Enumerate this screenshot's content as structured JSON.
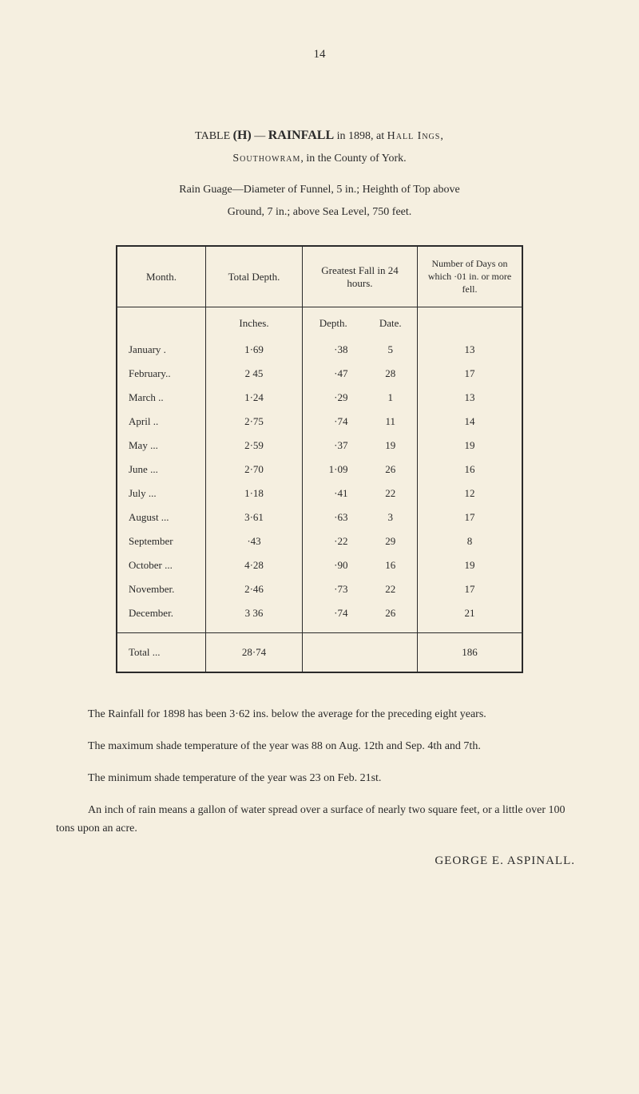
{
  "page_number": "14",
  "heading": {
    "line1_prefix": "TABLE ",
    "line1_bold_H": "(H)",
    "line1_dash": " — ",
    "line1_bold_rainfall": "RAINFALL",
    "line1_suffix": " in 1898, at ",
    "line1_smallcaps": "Hall Ings,",
    "line2_smallcaps": "Southowram",
    "line2_suffix": ", in the County of York."
  },
  "guage": {
    "line1": "Rain Guage—Diameter of Funnel, 5 in.; Heighth of Top above",
    "line2": "Ground, 7 in.; above Sea Level, 750 feet."
  },
  "table": {
    "headers": {
      "month": "Month.",
      "total_depth": "Total Depth.",
      "greatest_fall": "Greatest Fall in 24 hours.",
      "number_days": "Number of Days on which ·01 in. or more fell."
    },
    "subheaders": {
      "inches": "Inches.",
      "depth": "Depth.",
      "date": "Date."
    },
    "rows": [
      {
        "month": "January .",
        "inches": "1·69",
        "depth": "·38",
        "date": "5",
        "days": "13"
      },
      {
        "month": "February..",
        "inches": "2 45",
        "depth": "·47",
        "date": "28",
        "days": "17"
      },
      {
        "month": "March  ..",
        "inches": "1·24",
        "depth": "·29",
        "date": "1",
        "days": "13"
      },
      {
        "month": "April   ..",
        "inches": "2·75",
        "depth": "·74",
        "date": "11",
        "days": "14"
      },
      {
        "month": "May    ...",
        "inches": "2·59",
        "depth": "·37",
        "date": "19",
        "days": "19"
      },
      {
        "month": "June    ...",
        "inches": "2·70",
        "depth": "1·09",
        "date": "26",
        "days": "16"
      },
      {
        "month": "July    ...",
        "inches": "1·18",
        "depth": "·41",
        "date": "22",
        "days": "12"
      },
      {
        "month": "August ...",
        "inches": "3·61",
        "depth": "·63",
        "date": "3",
        "days": "17"
      },
      {
        "month": "September",
        "inches": "·43",
        "depth": "·22",
        "date": "29",
        "days": "8"
      },
      {
        "month": "October ...",
        "inches": "4·28",
        "depth": "·90",
        "date": "16",
        "days": "19"
      },
      {
        "month": "November.",
        "inches": "2·46",
        "depth": "·73",
        "date": "22",
        "days": "17"
      },
      {
        "month": "December.",
        "inches": "3 36",
        "depth": "·74",
        "date": "26",
        "days": "21"
      }
    ],
    "total": {
      "label": "Total    ...",
      "inches": "28·74",
      "days": "186"
    }
  },
  "paragraphs": {
    "p1": "The Rainfall for 1898 has been 3·62 ins. below the average for the preceding eight years.",
    "p2": "The maximum shade temperature of the year was 88 on Aug. 12th and Sep. 4th and 7th.",
    "p3": "The minimum shade temperature of the year was 23 on Feb. 21st.",
    "p4": "An inch of rain means a gallon of water spread over a surface of nearly two square feet, or a little over 100 tons upon an acre."
  },
  "signature": "GEORGE  E.  ASPINALL."
}
